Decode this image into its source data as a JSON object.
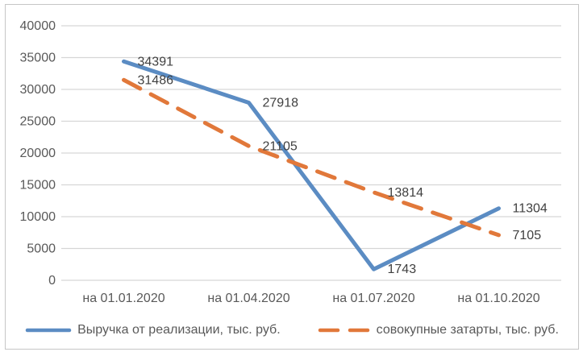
{
  "chart_data": {
    "type": "line",
    "title": "",
    "categories": [
      "на 01.01.2020",
      "на 01.04.2020",
      "на 01.07.2020",
      "на 01.10.2020"
    ],
    "series": [
      {
        "key": "revenue",
        "name": "Выручка от реализации, тыс. руб.",
        "values": [
          34391,
          27918,
          1743,
          11304
        ],
        "color": "#5b8cc3",
        "line_style": "solid"
      },
      {
        "key": "total-costs",
        "name": "совокупные затарты, тыс. руб.",
        "values": [
          31486,
          21105,
          13814,
          7105
        ],
        "color": "#e1783a",
        "line_style": "dashed"
      }
    ],
    "xlabel": "",
    "ylabel": "",
    "ylim": [
      0,
      40000
    ],
    "y_ticks": [
      0,
      5000,
      10000,
      15000,
      20000,
      25000,
      30000,
      35000,
      40000
    ],
    "grid": true,
    "legend_position": "bottom",
    "data_labels": true
  },
  "styles": {
    "grid_color": "#d6d6d6",
    "axis_text_color": "#595959",
    "data_label_color": "#404040",
    "frame_border_color": "#c6c6c6"
  }
}
